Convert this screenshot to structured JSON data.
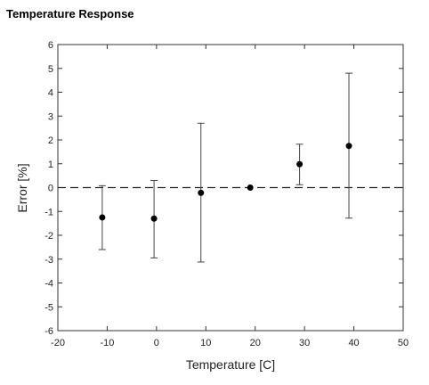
{
  "title": "Temperature Response",
  "chart_data": {
    "type": "scatter",
    "title": "Temperature Response",
    "xlabel": "Temperature [C]",
    "ylabel": "Error [%]",
    "xlim": [
      -20,
      50
    ],
    "ylim": [
      -6,
      6
    ],
    "xticks": [
      -20,
      -10,
      0,
      10,
      20,
      30,
      40,
      50
    ],
    "yticks": [
      -6,
      -5,
      -4,
      -3,
      -2,
      -1,
      0,
      1,
      2,
      3,
      4,
      5,
      6
    ],
    "reference_line": {
      "y": 0,
      "style": "dashed"
    },
    "grid": false,
    "points": [
      {
        "x": -11,
        "y": -1.25,
        "err_low": -2.6,
        "err_high": 0.08
      },
      {
        "x": -0.5,
        "y": -1.3,
        "err_low": -2.95,
        "err_high": 0.3
      },
      {
        "x": 9,
        "y": -0.22,
        "err_low": -3.12,
        "err_high": 2.7
      },
      {
        "x": 19,
        "y": 0.0,
        "err_low": 0.0,
        "err_high": 0.0
      },
      {
        "x": 29,
        "y": 0.98,
        "err_low": 0.12,
        "err_high": 1.82
      },
      {
        "x": 39,
        "y": 1.75,
        "err_low": -1.28,
        "err_high": 4.8
      }
    ]
  }
}
